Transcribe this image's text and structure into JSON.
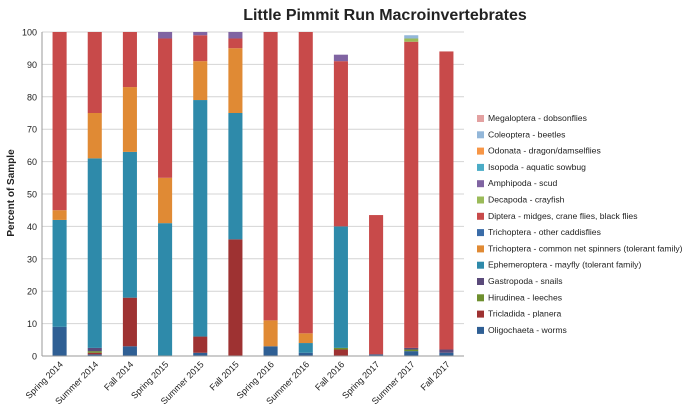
{
  "chart_data": {
    "type": "bar",
    "stacked": true,
    "title": "Little Pimmit Run Macroinvertebrates",
    "xlabel": "",
    "ylabel": "Percent of Sample",
    "ylim": [
      0,
      100
    ],
    "yticks": [
      0,
      10,
      20,
      30,
      40,
      50,
      60,
      70,
      80,
      90,
      100
    ],
    "grid": true,
    "legend_position": "right",
    "categories": [
      "Spring 2014",
      "Summer 2014",
      "Fall 2014",
      "Spring 2015",
      "Summer 2015",
      "Fall 2015",
      "Spring 2016",
      "Summer 2016",
      "Fall 2016",
      "Spring 2017",
      "Summer 2017",
      "Fall 2017"
    ],
    "series": [
      {
        "name": "Oligochaeta - worms",
        "color": "#2f5f94",
        "values": [
          9,
          0.5,
          3,
          0,
          1,
          0,
          3,
          1,
          0,
          0.5,
          1.5,
          1
        ]
      },
      {
        "name": "Tricladida - planera",
        "color": "#9e3232",
        "values": [
          0,
          0.5,
          15,
          0,
          5,
          36,
          0,
          0,
          2,
          0,
          0,
          0
        ]
      },
      {
        "name": "Hirudinea - leeches",
        "color": "#6e8f2e",
        "values": [
          0,
          0.5,
          0,
          0,
          0,
          0,
          0,
          0,
          0.5,
          0,
          0.5,
          0
        ]
      },
      {
        "name": "Gastropoda - snails",
        "color": "#5a4a7a",
        "values": [
          0,
          1,
          0,
          0,
          0,
          0,
          0,
          0,
          0,
          0,
          0.5,
          1
        ]
      },
      {
        "name": "Ephemeroptera - mayfly (tolerant family)",
        "color": "#2e8aaa",
        "values": [
          33,
          58.5,
          45,
          41,
          73,
          39,
          0,
          3,
          37.5,
          0,
          0,
          0
        ]
      },
      {
        "name": "Trichoptera - common net spinners (tolerant family)",
        "color": "#e08a34",
        "values": [
          3,
          14,
          20,
          14,
          12,
          20,
          8,
          3,
          0,
          0,
          0,
          0
        ]
      },
      {
        "name": "Trichoptera - other caddisflies",
        "color": "#3a6ca8",
        "values": [
          0,
          0,
          0,
          0,
          0,
          0,
          0,
          0,
          0,
          0,
          0,
          0
        ]
      },
      {
        "name": "Diptera - midges, crane flies, black flies",
        "color": "#c84a4a",
        "values": [
          55,
          25,
          17,
          43,
          8,
          3,
          89,
          93,
          51,
          43,
          94.5,
          92
        ]
      },
      {
        "name": "Decapoda - crayfish",
        "color": "#9bbb59",
        "values": [
          0,
          0,
          0,
          0,
          0,
          0,
          0,
          0,
          0,
          0,
          1,
          0
        ]
      },
      {
        "name": "Amphipoda - scud",
        "color": "#8064a2",
        "values": [
          0,
          0,
          0,
          2,
          1,
          2,
          0,
          0,
          2,
          0,
          0,
          0
        ]
      },
      {
        "name": "Isopoda - aquatic sowbug",
        "color": "#4bacc6",
        "values": [
          0,
          0,
          0,
          0,
          0,
          0,
          0,
          0,
          0,
          0,
          0,
          0
        ]
      },
      {
        "name": "Odonata - dragon/damselflies",
        "color": "#f79646",
        "values": [
          0,
          0,
          0,
          0,
          0,
          0,
          0,
          0,
          0,
          0,
          0,
          0
        ]
      },
      {
        "name": "Coleoptera - beetles",
        "color": "#93b7d9",
        "values": [
          0,
          0,
          0,
          0,
          0,
          0,
          0,
          0,
          0,
          0,
          1,
          0
        ]
      },
      {
        "name": "Megaloptera - dobsonflies",
        "color": "#e3a1a1",
        "values": [
          0,
          0,
          0,
          0,
          0,
          0,
          0,
          0,
          0,
          0,
          0,
          0
        ]
      }
    ],
    "legend_order": [
      "Megaloptera - dobsonflies",
      "Coleoptera - beetles",
      "Odonata - dragon/damselflies",
      "Isopoda - aquatic sowbug",
      "Amphipoda - scud",
      "Decapoda - crayfish",
      "Diptera - midges, crane flies, black flies",
      "Trichoptera - other caddisflies",
      "Trichoptera - common net spinners (tolerant family)",
      "Ephemeroptera - mayfly (tolerant family)",
      "Gastropoda - snails",
      "Hirudinea - leeches",
      "Tricladida - planera",
      "Oligochaeta - worms"
    ]
  }
}
